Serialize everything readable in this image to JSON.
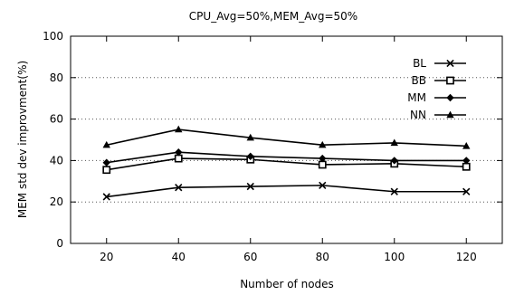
{
  "chart_data": {
    "type": "line",
    "title": "CPU_Avg=50%,MEM_Avg=50%",
    "xlabel": "Number of nodes",
    "ylabel": "MEM std dev improvment(%)",
    "x": [
      20,
      40,
      60,
      80,
      100,
      120
    ],
    "xlim": [
      10,
      130
    ],
    "ylim": [
      0,
      100
    ],
    "yticks": [
      0,
      20,
      40,
      60,
      80,
      100
    ],
    "grid": "horizontal dotted",
    "legend_position": "top-right",
    "series": [
      {
        "name": "BL",
        "marker": "x",
        "values": [
          22.5,
          27,
          27.5,
          28,
          25,
          25
        ]
      },
      {
        "name": "BB",
        "marker": "square",
        "values": [
          35.5,
          41,
          40.5,
          38,
          38.5,
          37
        ]
      },
      {
        "name": "MM",
        "marker": "diamond",
        "values": [
          39,
          44,
          42,
          41,
          40,
          40
        ]
      },
      {
        "name": "NN",
        "marker": "triangle",
        "values": [
          47.5,
          55,
          51,
          47.5,
          48.5,
          47
        ]
      }
    ]
  }
}
